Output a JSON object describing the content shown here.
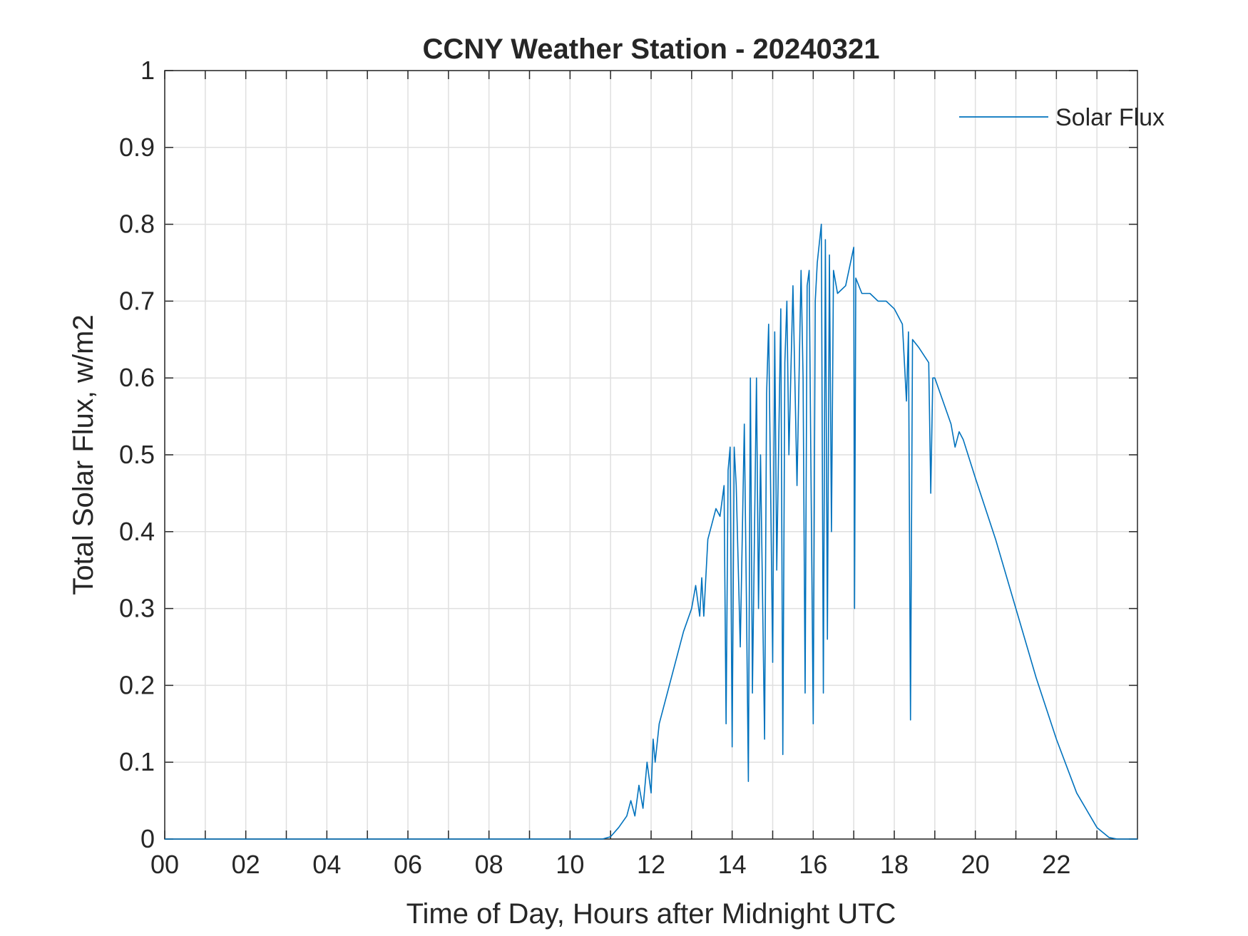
{
  "chart_data": {
    "type": "line",
    "title": "CCNY Weather Station - 20240321",
    "xlabel": "Time of Day, Hours after Midnight UTC",
    "ylabel": "Total Solar Flux, w/m2",
    "xlim": [
      0,
      24
    ],
    "ylim": [
      0,
      1
    ],
    "xticks": [
      {
        "value": 0,
        "label": "00"
      },
      {
        "value": 2,
        "label": "02"
      },
      {
        "value": 4,
        "label": "04"
      },
      {
        "value": 6,
        "label": "06"
      },
      {
        "value": 8,
        "label": "08"
      },
      {
        "value": 10,
        "label": "10"
      },
      {
        "value": 12,
        "label": "12"
      },
      {
        "value": 14,
        "label": "14"
      },
      {
        "value": 16,
        "label": "16"
      },
      {
        "value": 18,
        "label": "18"
      },
      {
        "value": 20,
        "label": "20"
      },
      {
        "value": 22,
        "label": "22"
      }
    ],
    "xminorgrid": [
      1,
      3,
      5,
      7,
      9,
      11,
      13,
      15,
      17,
      19,
      21,
      23
    ],
    "yticks": [
      0,
      0.1,
      0.2,
      0.3,
      0.4,
      0.5,
      0.6,
      0.7,
      0.8,
      0.9,
      1
    ],
    "grid": true,
    "legend": "northeast",
    "x": [
      0,
      10.8,
      11.0,
      11.2,
      11.4,
      11.5,
      11.6,
      11.7,
      11.8,
      11.9,
      12.0,
      12.05,
      12.1,
      12.2,
      12.4,
      12.6,
      12.8,
      13.0,
      13.1,
      13.2,
      13.25,
      13.3,
      13.4,
      13.5,
      13.6,
      13.7,
      13.8,
      13.85,
      13.9,
      13.95,
      14.0,
      14.05,
      14.1,
      14.2,
      14.3,
      14.35,
      14.4,
      14.45,
      14.5,
      14.6,
      14.65,
      14.7,
      14.8,
      14.85,
      14.9,
      15.0,
      15.05,
      15.1,
      15.2,
      15.25,
      15.3,
      15.35,
      15.4,
      15.5,
      15.6,
      15.7,
      15.75,
      15.8,
      15.85,
      15.9,
      16.0,
      16.05,
      16.1,
      16.2,
      16.25,
      16.3,
      16.35,
      16.4,
      16.45,
      16.5,
      16.6,
      16.8,
      17.0,
      17.02,
      17.05,
      17.2,
      17.4,
      17.6,
      17.8,
      18.0,
      18.2,
      18.3,
      18.35,
      18.4,
      18.45,
      18.6,
      18.85,
      18.9,
      18.95,
      19.0,
      19.2,
      19.4,
      19.5,
      19.6,
      19.7,
      20.0,
      20.5,
      21.0,
      21.5,
      22.0,
      22.5,
      23.0,
      23.3,
      23.5,
      24.0
    ],
    "series": [
      {
        "name": "Solar Flux",
        "color": "#0072bd",
        "values": [
          0,
          0,
          0.003,
          0.015,
          0.03,
          0.05,
          0.03,
          0.07,
          0.04,
          0.1,
          0.06,
          0.13,
          0.1,
          0.15,
          0.19,
          0.23,
          0.27,
          0.3,
          0.33,
          0.29,
          0.34,
          0.29,
          0.39,
          0.41,
          0.43,
          0.42,
          0.46,
          0.15,
          0.48,
          0.51,
          0.12,
          0.51,
          0.46,
          0.25,
          0.54,
          0.32,
          0.075,
          0.6,
          0.19,
          0.6,
          0.3,
          0.5,
          0.13,
          0.58,
          0.67,
          0.23,
          0.66,
          0.35,
          0.69,
          0.11,
          0.62,
          0.7,
          0.5,
          0.72,
          0.46,
          0.74,
          0.6,
          0.19,
          0.72,
          0.74,
          0.15,
          0.7,
          0.75,
          0.8,
          0.19,
          0.78,
          0.26,
          0.76,
          0.4,
          0.74,
          0.71,
          0.72,
          0.77,
          0.3,
          0.73,
          0.71,
          0.71,
          0.7,
          0.7,
          0.69,
          0.67,
          0.57,
          0.66,
          0.155,
          0.65,
          0.64,
          0.62,
          0.45,
          0.6,
          0.6,
          0.57,
          0.54,
          0.51,
          0.53,
          0.52,
          0.47,
          0.39,
          0.3,
          0.21,
          0.13,
          0.06,
          0.015,
          0.002,
          0,
          0
        ]
      }
    ]
  }
}
